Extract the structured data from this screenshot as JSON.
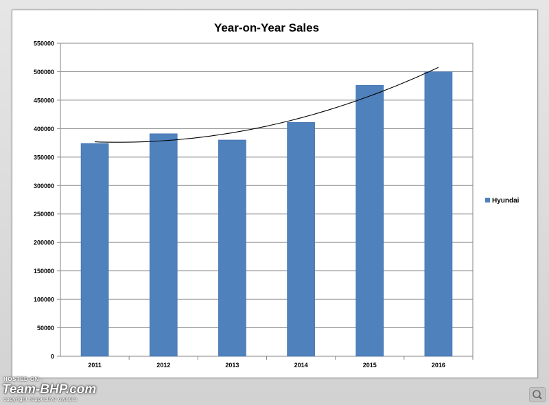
{
  "chart_data": {
    "type": "bar",
    "title": "Year-on-Year Sales",
    "categories": [
      "2011",
      "2012",
      "2013",
      "2014",
      "2015",
      "2016"
    ],
    "series": [
      {
        "name": "Hyundai",
        "values": [
          374000,
          391000,
          380000,
          411000,
          476000,
          500000
        ],
        "color": "#4f81bd"
      }
    ],
    "trendline": {
      "type": "polynomial",
      "color": "#000000"
    },
    "ylim": [
      0,
      550000
    ],
    "yticks": [
      0,
      50000,
      100000,
      150000,
      200000,
      250000,
      300000,
      350000,
      400000,
      450000,
      500000,
      550000
    ],
    "grid": true,
    "legend": "right"
  },
  "watermark": {
    "hosted_on": "HOSTED ON :",
    "brand": "Team-BHP.com",
    "copyright": "copyright respective owners"
  },
  "zoom_icon": "magnifier-icon"
}
